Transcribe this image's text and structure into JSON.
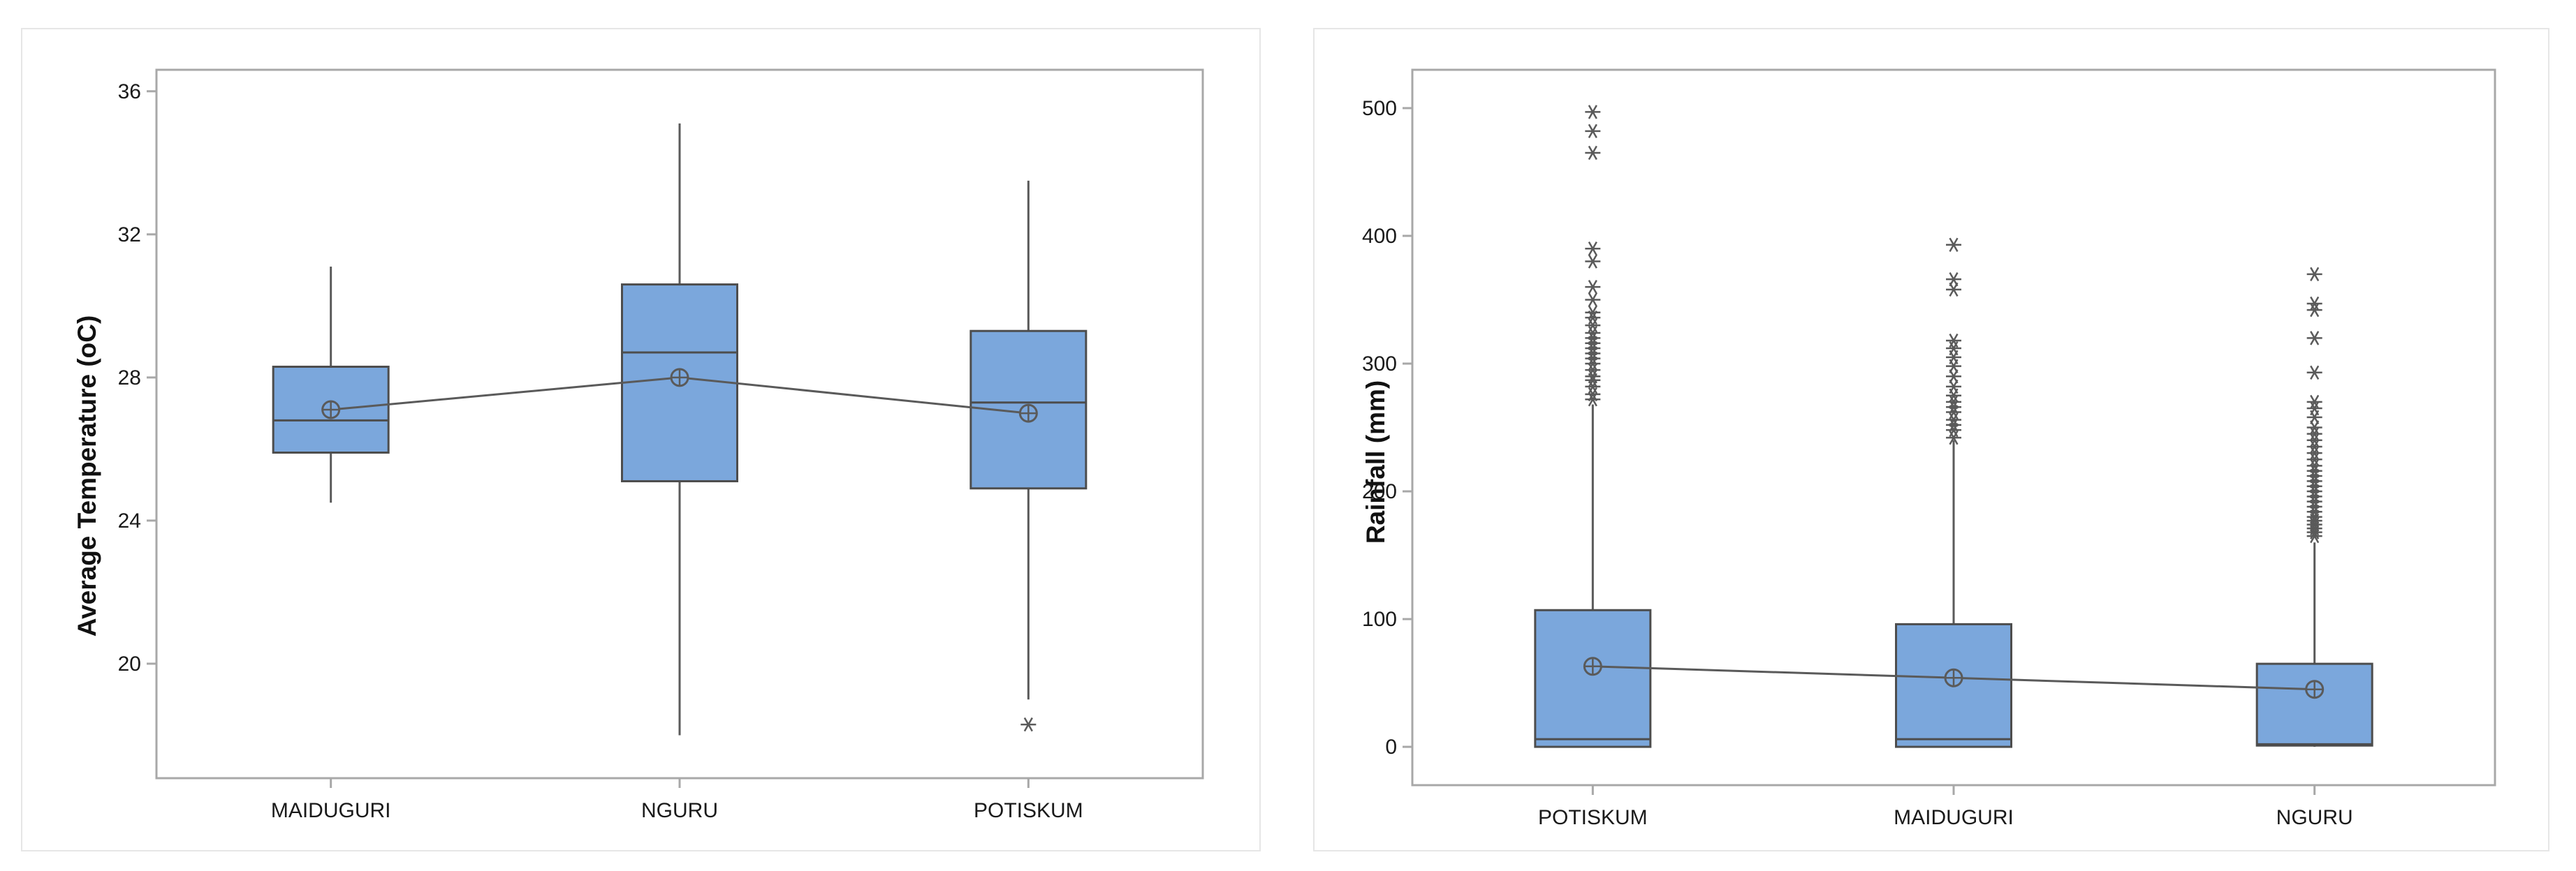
{
  "colors": {
    "box_fill": "#7BA7DC",
    "box_stroke": "#4D4D4D",
    "line": "#5A5A5A",
    "frame": "#A8A8A8",
    "panel_border": "#E6E6E6"
  },
  "chart_data": [
    {
      "type": "boxplot",
      "title": "",
      "xlabel": "",
      "ylabel": "Average Temperature (oC)",
      "ylim": [
        16.8,
        36.6
      ],
      "yticks": [
        20,
        24,
        28,
        32,
        36
      ],
      "ytick_labels": [
        "20",
        "24",
        "28",
        "32",
        "36"
      ],
      "categories": [
        "MAIDUGURI",
        "NGURU",
        "POTISKUM"
      ],
      "boxes": [
        {
          "min": 24.5,
          "q1": 25.9,
          "median": 26.8,
          "q3": 28.3,
          "max": 31.1,
          "mean": 27.1,
          "outliers": []
        },
        {
          "min": 18.0,
          "q1": 25.1,
          "median": 28.7,
          "q3": 30.6,
          "max": 35.1,
          "mean": 28.0,
          "outliers": []
        },
        {
          "min": 19.0,
          "q1": 24.9,
          "median": 27.3,
          "q3": 29.3,
          "max": 33.5,
          "mean": 27.0,
          "outliers": [
            18.3
          ]
        }
      ],
      "mean_connect_line": true,
      "grid": false,
      "legend": "none"
    },
    {
      "type": "boxplot",
      "title": "",
      "xlabel": "",
      "ylabel": "Rainfall (mm)",
      "ylim": [
        -30,
        530
      ],
      "yticks": [
        0,
        100,
        200,
        300,
        400,
        500
      ],
      "ytick_labels": [
        "0",
        "100",
        "200",
        "300",
        "400",
        "500"
      ],
      "categories": [
        "POTISKUM",
        "MAIDUGURI",
        "NGURU"
      ],
      "boxes": [
        {
          "min": 0,
          "q1": 0,
          "median": 6,
          "q3": 107,
          "max": 268,
          "mean": 63,
          "outliers": [
            272,
            276,
            282,
            287,
            290,
            295,
            300,
            304,
            308,
            312,
            316,
            320,
            324,
            330,
            336,
            340,
            350,
            360,
            380,
            390,
            465,
            482,
            497
          ]
        },
        {
          "min": 0,
          "q1": 0,
          "median": 6,
          "q3": 96,
          "max": 240,
          "mean": 54,
          "outliers": [
            242,
            248,
            252,
            256,
            262,
            266,
            270,
            275,
            282,
            290,
            298,
            305,
            312,
            318,
            358,
            366,
            393
          ]
        },
        {
          "min": 0,
          "q1": 1,
          "median": 2,
          "q3": 65,
          "max": 160,
          "mean": 45,
          "outliers": [
            165,
            168,
            171,
            174,
            177,
            180,
            184,
            188,
            192,
            196,
            200,
            204,
            208,
            212,
            216,
            220,
            225,
            230,
            235,
            240,
            245,
            250,
            258,
            265,
            270,
            293,
            320,
            342,
            347,
            370
          ]
        }
      ],
      "mean_connect_line": true,
      "grid": false,
      "legend": "none"
    }
  ]
}
